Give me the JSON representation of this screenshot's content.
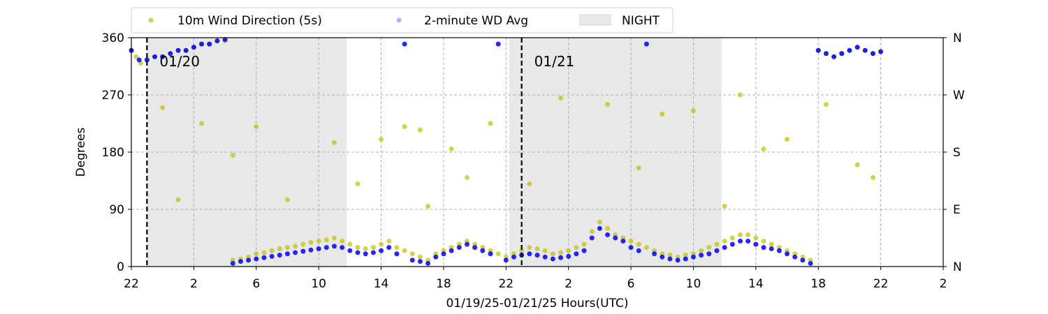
{
  "chart_data": {
    "type": "scatter",
    "xlabel": "01/19/25-01/21/25  Hours(UTC)",
    "ylabel": "Degrees",
    "x_range": [
      22,
      74
    ],
    "ylim": [
      0,
      360
    ],
    "x_ticks": [
      {
        "hour": 22,
        "label": "22"
      },
      {
        "hour": 26,
        "label": "2"
      },
      {
        "hour": 30,
        "label": "6"
      },
      {
        "hour": 34,
        "label": "10"
      },
      {
        "hour": 38,
        "label": "14"
      },
      {
        "hour": 42,
        "label": "18"
      },
      {
        "hour": 46,
        "label": "22"
      },
      {
        "hour": 50,
        "label": "2"
      },
      {
        "hour": 54,
        "label": "6"
      },
      {
        "hour": 58,
        "label": "10"
      },
      {
        "hour": 62,
        "label": "14"
      },
      {
        "hour": 66,
        "label": "18"
      },
      {
        "hour": 70,
        "label": "22"
      },
      {
        "hour": 74,
        "label": "2"
      }
    ],
    "y_ticks": [
      0,
      90,
      180,
      270,
      360
    ],
    "y2_ticks": [
      {
        "value": 0,
        "label": "N"
      },
      {
        "value": 90,
        "label": "E"
      },
      {
        "value": 180,
        "label": "S"
      },
      {
        "value": 270,
        "label": "W"
      },
      {
        "value": 360,
        "label": "N"
      }
    ],
    "grid": true,
    "legend": {
      "placement": "top, above plot",
      "entries": [
        {
          "label": "10m Wind Direction (5s)",
          "color": "#bfbf00"
        },
        {
          "label": "2-minute WD Avg",
          "color": "#0000ff"
        },
        {
          "label": "NIGHT",
          "color": "#e8e8e8"
        }
      ]
    },
    "night_periods": [
      [
        23,
        35.8
      ],
      [
        46.2,
        59.8
      ]
    ],
    "day_markers": [
      {
        "hour": 23,
        "label": "01/20"
      },
      {
        "hour": 47,
        "label": "01/21"
      }
    ],
    "series": [
      {
        "name": "10m Wind Direction (5s)",
        "color": "#bfbf00",
        "values": [
          [
            22.0,
            340
          ],
          [
            22.3,
            330
          ],
          [
            22.6,
            320
          ],
          [
            23.0,
            325
          ],
          [
            23.5,
            330
          ],
          [
            24.0,
            330
          ],
          [
            24.5,
            335
          ],
          [
            25.0,
            340
          ],
          [
            25.5,
            340
          ],
          [
            26.0,
            345
          ],
          [
            26.5,
            350
          ],
          [
            27.0,
            350
          ],
          [
            27.5,
            355
          ],
          [
            28.0,
            355
          ],
          [
            28.5,
            10
          ],
          [
            29.0,
            12
          ],
          [
            29.5,
            15
          ],
          [
            30.0,
            20
          ],
          [
            30.5,
            22
          ],
          [
            31.0,
            25
          ],
          [
            31.5,
            28
          ],
          [
            32.0,
            30
          ],
          [
            32.5,
            32
          ],
          [
            33.0,
            35
          ],
          [
            33.5,
            38
          ],
          [
            34.0,
            40
          ],
          [
            34.5,
            42
          ],
          [
            35.0,
            45
          ],
          [
            35.5,
            40
          ],
          [
            36.0,
            35
          ],
          [
            36.5,
            30
          ],
          [
            37.0,
            28
          ],
          [
            37.5,
            30
          ],
          [
            38.0,
            35
          ],
          [
            38.5,
            40
          ],
          [
            39.0,
            30
          ],
          [
            39.5,
            25
          ],
          [
            40.0,
            20
          ],
          [
            40.5,
            15
          ],
          [
            41.0,
            10
          ],
          [
            41.5,
            20
          ],
          [
            42.0,
            25
          ],
          [
            42.5,
            30
          ],
          [
            43.0,
            35
          ],
          [
            43.5,
            40
          ],
          [
            44.0,
            35
          ],
          [
            44.5,
            30
          ],
          [
            45.0,
            25
          ],
          [
            45.5,
            20
          ],
          [
            46.0,
            15
          ],
          [
            46.5,
            20
          ],
          [
            47.0,
            25
          ],
          [
            47.5,
            30
          ],
          [
            48.0,
            28
          ],
          [
            48.5,
            25
          ],
          [
            49.0,
            20
          ],
          [
            49.5,
            22
          ],
          [
            50.0,
            25
          ],
          [
            50.5,
            30
          ],
          [
            51.0,
            35
          ],
          [
            51.5,
            55
          ],
          [
            52.0,
            70
          ],
          [
            52.5,
            60
          ],
          [
            53.0,
            50
          ],
          [
            53.5,
            45
          ],
          [
            54.0,
            40
          ],
          [
            54.5,
            35
          ],
          [
            55.0,
            30
          ],
          [
            55.5,
            25
          ],
          [
            56.0,
            20
          ],
          [
            56.5,
            18
          ],
          [
            57.0,
            15
          ],
          [
            57.5,
            18
          ],
          [
            58.0,
            20
          ],
          [
            58.5,
            25
          ],
          [
            59.0,
            30
          ],
          [
            59.5,
            35
          ],
          [
            60.0,
            40
          ],
          [
            60.5,
            45
          ],
          [
            61.0,
            50
          ],
          [
            61.5,
            50
          ],
          [
            62.0,
            45
          ],
          [
            62.5,
            40
          ],
          [
            63.0,
            35
          ],
          [
            63.5,
            30
          ],
          [
            64.0,
            25
          ],
          [
            64.5,
            20
          ],
          [
            65.0,
            15
          ],
          [
            65.5,
            10
          ],
          [
            66.0,
            340
          ],
          [
            66.5,
            335
          ],
          [
            67.0,
            330
          ],
          [
            67.5,
            335
          ],
          [
            68.0,
            340
          ],
          [
            68.5,
            345
          ],
          [
            69.0,
            340
          ],
          [
            69.5,
            335
          ],
          [
            70.0,
            338
          ],
          [
            24.0,
            250
          ],
          [
            25.0,
            105
          ],
          [
            26.5,
            225
          ],
          [
            28.5,
            175
          ],
          [
            30.0,
            220
          ],
          [
            32.0,
            105
          ],
          [
            35.0,
            195
          ],
          [
            36.5,
            130
          ],
          [
            38.0,
            200
          ],
          [
            40.5,
            215
          ],
          [
            42.5,
            185
          ],
          [
            43.5,
            140
          ],
          [
            47.5,
            130
          ],
          [
            49.5,
            265
          ],
          [
            52.5,
            255
          ],
          [
            54.5,
            155
          ],
          [
            56.0,
            240
          ],
          [
            58.0,
            245
          ],
          [
            61.0,
            270
          ],
          [
            62.5,
            185
          ],
          [
            64.0,
            200
          ],
          [
            66.5,
            255
          ],
          [
            68.5,
            160
          ],
          [
            69.5,
            140
          ],
          [
            39.5,
            220
          ],
          [
            45.0,
            225
          ],
          [
            41.0,
            95
          ],
          [
            60.0,
            95
          ]
        ]
      },
      {
        "name": "2-minute WD Avg",
        "color": "#0000ff",
        "values": [
          [
            22.0,
            340
          ],
          [
            22.5,
            325
          ],
          [
            23.0,
            325
          ],
          [
            23.5,
            330
          ],
          [
            24.0,
            330
          ],
          [
            24.5,
            335
          ],
          [
            25.0,
            340
          ],
          [
            25.5,
            340
          ],
          [
            26.0,
            345
          ],
          [
            26.5,
            350
          ],
          [
            27.0,
            350
          ],
          [
            27.5,
            355
          ],
          [
            28.0,
            357
          ],
          [
            28.5,
            5
          ],
          [
            29.0,
            8
          ],
          [
            29.5,
            10
          ],
          [
            30.0,
            12
          ],
          [
            30.5,
            14
          ],
          [
            31.0,
            16
          ],
          [
            31.5,
            18
          ],
          [
            32.0,
            20
          ],
          [
            32.5,
            22
          ],
          [
            33.0,
            24
          ],
          [
            33.5,
            26
          ],
          [
            34.0,
            28
          ],
          [
            34.5,
            30
          ],
          [
            35.0,
            32
          ],
          [
            35.5,
            30
          ],
          [
            36.0,
            25
          ],
          [
            36.5,
            22
          ],
          [
            37.0,
            20
          ],
          [
            37.5,
            22
          ],
          [
            38.0,
            25
          ],
          [
            38.5,
            30
          ],
          [
            39.0,
            20
          ],
          [
            39.5,
            350
          ],
          [
            40.0,
            10
          ],
          [
            40.5,
            8
          ],
          [
            41.0,
            5
          ],
          [
            41.5,
            15
          ],
          [
            42.0,
            20
          ],
          [
            42.5,
            25
          ],
          [
            43.0,
            30
          ],
          [
            43.5,
            35
          ],
          [
            44.0,
            30
          ],
          [
            44.5,
            25
          ],
          [
            45.0,
            20
          ],
          [
            45.5,
            350
          ],
          [
            46.0,
            10
          ],
          [
            46.5,
            15
          ],
          [
            47.0,
            18
          ],
          [
            47.5,
            20
          ],
          [
            48.0,
            18
          ],
          [
            48.5,
            15
          ],
          [
            49.0,
            12
          ],
          [
            49.5,
            14
          ],
          [
            50.0,
            16
          ],
          [
            50.5,
            20
          ],
          [
            51.0,
            25
          ],
          [
            51.5,
            45
          ],
          [
            52.0,
            60
          ],
          [
            52.5,
            50
          ],
          [
            53.0,
            45
          ],
          [
            53.5,
            40
          ],
          [
            54.0,
            30
          ],
          [
            54.5,
            25
          ],
          [
            55.0,
            350
          ],
          [
            55.5,
            20
          ],
          [
            56.0,
            15
          ],
          [
            56.5,
            12
          ],
          [
            57.0,
            10
          ],
          [
            57.5,
            12
          ],
          [
            58.0,
            15
          ],
          [
            58.5,
            18
          ],
          [
            59.0,
            20
          ],
          [
            59.5,
            25
          ],
          [
            60.0,
            30
          ],
          [
            60.5,
            35
          ],
          [
            61.0,
            40
          ],
          [
            61.5,
            40
          ],
          [
            62.0,
            35
          ],
          [
            62.5,
            30
          ],
          [
            63.0,
            28
          ],
          [
            63.5,
            25
          ],
          [
            64.0,
            20
          ],
          [
            64.5,
            15
          ],
          [
            65.0,
            10
          ],
          [
            65.5,
            5
          ],
          [
            66.0,
            340
          ],
          [
            66.5,
            335
          ],
          [
            67.0,
            330
          ],
          [
            67.5,
            335
          ],
          [
            68.0,
            340
          ],
          [
            68.5,
            345
          ],
          [
            69.0,
            340
          ],
          [
            69.5,
            335
          ],
          [
            70.0,
            338
          ]
        ]
      }
    ]
  }
}
